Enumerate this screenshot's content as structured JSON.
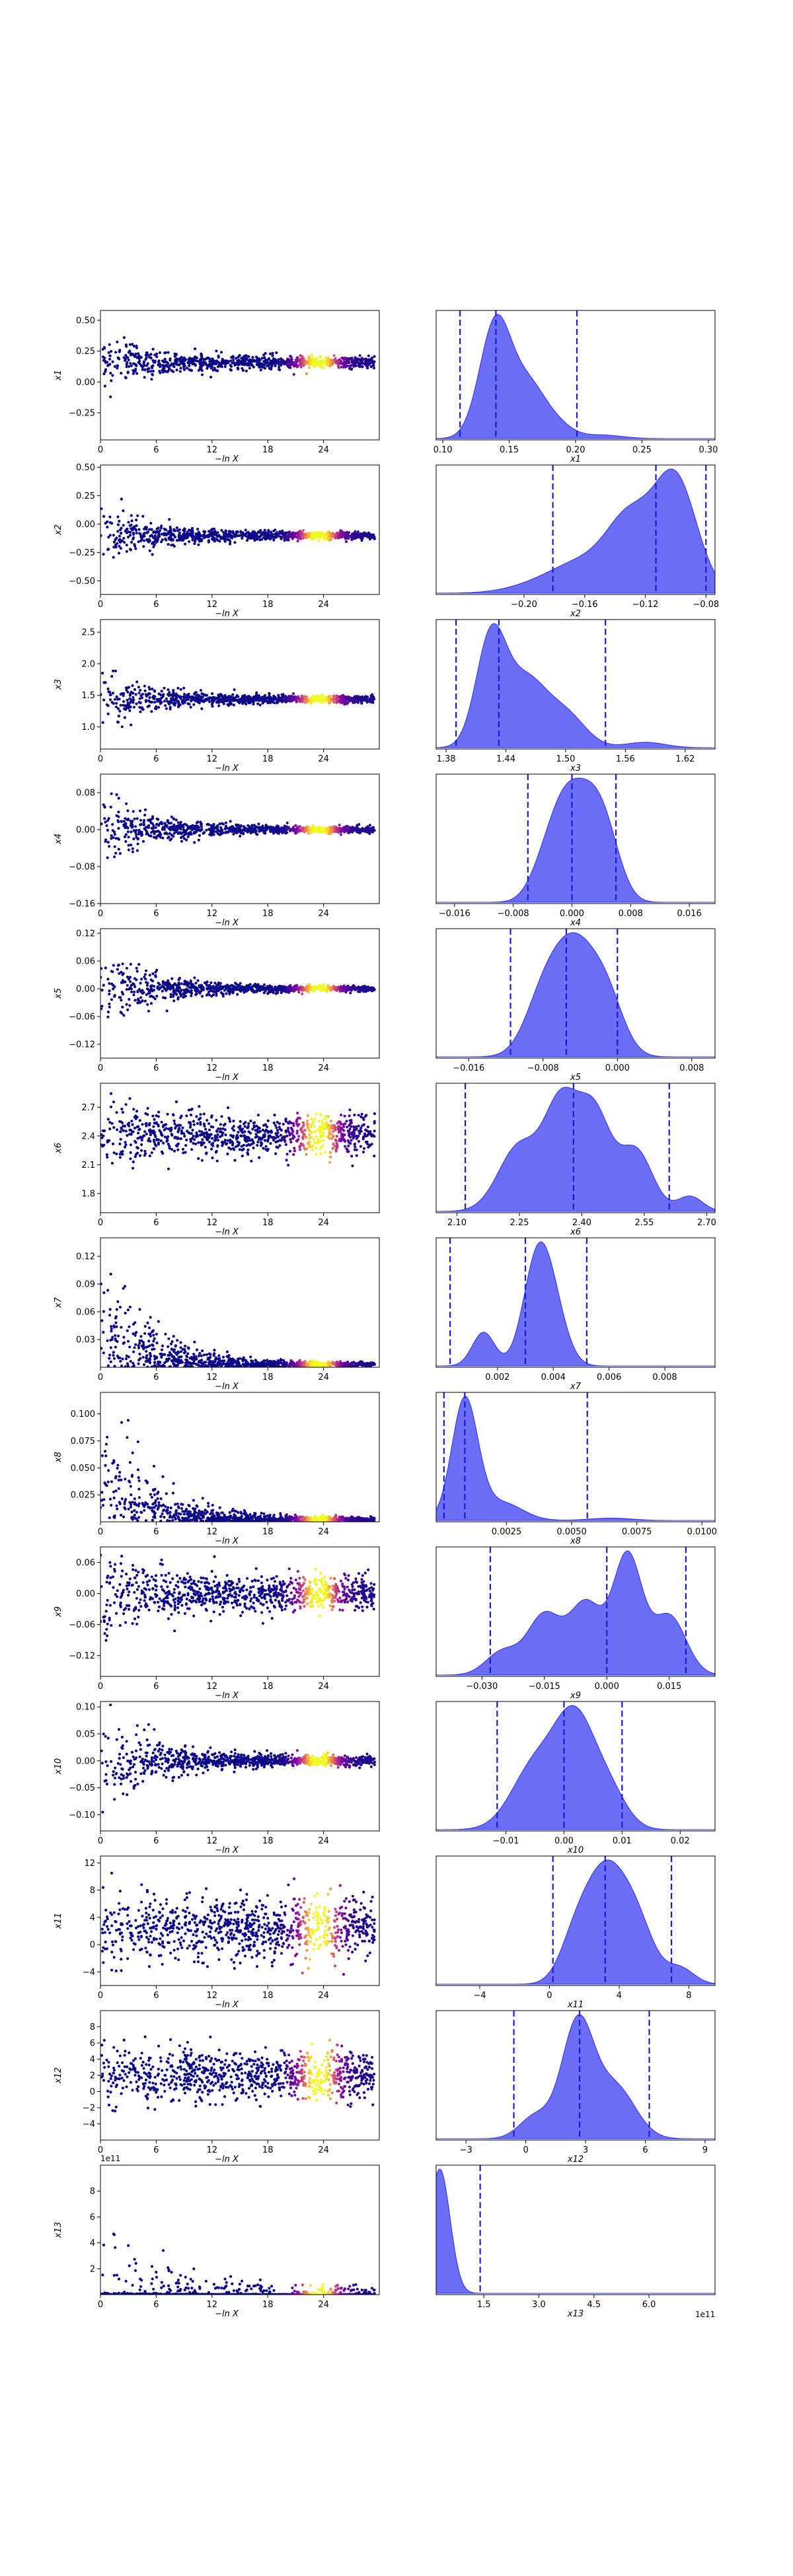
{
  "chart_data": [
    {
      "type": "scatter",
      "xlabel": "−ln X",
      "ylabel": "x1",
      "xlim": [
        0,
        30
      ],
      "ylim": [
        -0.47,
        0.58
      ],
      "xticks": [
        "0",
        "6",
        "12",
        "18",
        "24"
      ],
      "yticks": [
        "-0.25",
        "0.00",
        "0.25",
        "0.50"
      ],
      "center": 0.16,
      "spread0": 0.22,
      "spread_end": 0.04
    },
    {
      "type": "area",
      "xlabel": "x1",
      "xlim": [
        0.095,
        0.305
      ],
      "xticks": [
        "0.10",
        "0.15",
        "0.20",
        "0.25",
        "0.30"
      ],
      "quantiles": [
        0.113,
        0.14,
        0.201
      ],
      "peaks": [
        [
          0.14,
          1.0,
          0.012
        ],
        [
          0.165,
          0.4,
          0.012
        ],
        [
          0.185,
          0.12,
          0.012
        ],
        [
          0.22,
          0.03,
          0.015
        ]
      ]
    },
    {
      "type": "scatter",
      "xlabel": "−ln X",
      "ylabel": "x2",
      "xlim": [
        0,
        30
      ],
      "ylim": [
        -0.62,
        0.52
      ],
      "xticks": [
        "0",
        "6",
        "12",
        "18",
        "24"
      ],
      "yticks": [
        "-0.50",
        "-0.25",
        "0.00",
        "0.25",
        "0.50"
      ],
      "center": -0.1,
      "spread0": 0.25,
      "spread_end": 0.03
    },
    {
      "type": "area",
      "xlabel": "x2",
      "xlim": [
        -0.258,
        -0.074
      ],
      "xticks": [
        "-0.20",
        "-0.16",
        "-0.12",
        "-0.08"
      ],
      "quantiles": [
        -0.181,
        -0.113,
        -0.08
      ],
      "peaks": [
        [
          -0.1,
          1.0,
          0.014
        ],
        [
          -0.13,
          0.6,
          0.015
        ],
        [
          -0.16,
          0.25,
          0.02
        ],
        [
          -0.19,
          0.07,
          0.02
        ]
      ]
    },
    {
      "type": "scatter",
      "xlabel": "−ln X",
      "ylabel": "x3",
      "xlim": [
        0,
        30
      ],
      "ylim": [
        0.65,
        2.7
      ],
      "xticks": [
        "0",
        "6",
        "12",
        "18",
        "24"
      ],
      "yticks": [
        "1.0",
        "1.5",
        "2.0",
        "2.5"
      ],
      "center": 1.44,
      "spread0": 0.45,
      "spread_end": 0.05
    },
    {
      "type": "area",
      "xlabel": "x3",
      "xlim": [
        1.37,
        1.65
      ],
      "xticks": [
        "1.38",
        "1.44",
        "1.50",
        "1.56",
        "1.62"
      ],
      "quantiles": [
        1.39,
        1.433,
        1.54
      ],
      "peaks": [
        [
          1.425,
          1.0,
          0.015
        ],
        [
          1.46,
          0.6,
          0.02
        ],
        [
          1.5,
          0.3,
          0.02
        ],
        [
          1.58,
          0.05,
          0.02
        ]
      ]
    },
    {
      "type": "scatter",
      "xlabel": "−ln X",
      "ylabel": "x4",
      "xlim": [
        0,
        30
      ],
      "ylim": [
        -0.16,
        0.12
      ],
      "xticks": [
        "0",
        "6",
        "12",
        "18",
        "24"
      ],
      "yticks": [
        "-0.16",
        "-0.08",
        "0.00",
        "0.08"
      ],
      "center": 0.0,
      "spread0": 0.08,
      "spread_end": 0.006
    },
    {
      "type": "area",
      "xlabel": "x4",
      "xlim": [
        -0.0185,
        0.0195
      ],
      "xticks": [
        "-0.016",
        "-0.008",
        "0.000",
        "0.008",
        "0.016"
      ],
      "quantiles": [
        -0.006,
        0.0,
        0.006
      ],
      "peaks": [
        [
          -0.001,
          1.0,
          0.0022
        ],
        [
          0.0025,
          0.9,
          0.0022
        ],
        [
          0.005,
          0.5,
          0.002
        ],
        [
          -0.004,
          0.3,
          0.002
        ]
      ]
    },
    {
      "type": "scatter",
      "xlabel": "−ln X",
      "ylabel": "x5",
      "xlim": [
        0,
        30
      ],
      "ylim": [
        -0.15,
        0.13
      ],
      "xticks": [
        "0",
        "6",
        "12",
        "18",
        "24"
      ],
      "yticks": [
        "-0.12",
        "-0.06",
        "0.00",
        "0.06",
        "0.12"
      ],
      "center": 0.0,
      "spread0": 0.09,
      "spread_end": 0.005
    },
    {
      "type": "area",
      "xlabel": "x5",
      "xlim": [
        -0.0195,
        0.0105
      ],
      "xticks": [
        "-0.016",
        "-0.008",
        "0.000",
        "0.008"
      ],
      "quantiles": [
        -0.0115,
        -0.0055,
        0.0
      ],
      "peaks": [
        [
          -0.0045,
          1.0,
          0.0023
        ],
        [
          -0.008,
          0.5,
          0.002
        ],
        [
          -0.001,
          0.45,
          0.0018
        ]
      ]
    },
    {
      "type": "scatter",
      "xlabel": "−ln X",
      "ylabel": "x6",
      "xlim": [
        0,
        30
      ],
      "ylim": [
        1.6,
        2.95
      ],
      "xticks": [
        "0",
        "6",
        "12",
        "18",
        "24"
      ],
      "yticks": [
        "1.8",
        "2.1",
        "2.4",
        "2.7"
      ],
      "center": 2.41,
      "spread0": 0.35,
      "spread_end": 0.18
    },
    {
      "type": "area",
      "xlabel": "x6",
      "xlim": [
        2.05,
        2.72
      ],
      "xticks": [
        "2.10",
        "2.25",
        "2.40",
        "2.55",
        "2.70"
      ],
      "quantiles": [
        2.12,
        2.38,
        2.61
      ],
      "peaks": [
        [
          2.35,
          1.0,
          0.04
        ],
        [
          2.43,
          0.95,
          0.04
        ],
        [
          2.25,
          0.65,
          0.05
        ],
        [
          2.53,
          0.6,
          0.04
        ],
        [
          2.66,
          0.15,
          0.03
        ]
      ]
    },
    {
      "type": "scatter",
      "xlabel": "−ln X",
      "ylabel": "x7",
      "xlim": [
        0,
        30
      ],
      "ylim": [
        0.0,
        0.14
      ],
      "xticks": [
        "0",
        "6",
        "12",
        "18",
        "24"
      ],
      "yticks": [
        "0.03",
        "0.06",
        "0.09",
        "0.12"
      ],
      "center": 0.003,
      "spread0": 0.11,
      "spread_end": 0.002,
      "floor": 0.0
    },
    {
      "type": "area",
      "xlabel": "x7",
      "xlim": [
        -0.0002,
        0.0098
      ],
      "xticks": [
        "0.002",
        "0.004",
        "0.006",
        "0.008"
      ],
      "quantiles": [
        0.0003,
        0.003,
        0.0052
      ],
      "peaks": [
        [
          0.0034,
          1.0,
          0.0005
        ],
        [
          0.0015,
          0.35,
          0.0004
        ],
        [
          0.004,
          0.5,
          0.0005
        ]
      ]
    },
    {
      "type": "scatter",
      "xlabel": "−ln X",
      "ylabel": "x8",
      "xlim": [
        0,
        30
      ],
      "ylim": [
        0.0,
        0.12
      ],
      "xticks": [
        "0",
        "6",
        "12",
        "18",
        "24"
      ],
      "yticks": [
        "0.025",
        "0.050",
        "0.075",
        "0.100"
      ],
      "center": 0.002,
      "spread0": 0.1,
      "spread_end": 0.002,
      "floor": 0.0
    },
    {
      "type": "area",
      "xlabel": "x8",
      "xlim": [
        -0.0002,
        0.0105
      ],
      "xticks": [
        "0.0025",
        "0.0050",
        "0.0075",
        "0.0100"
      ],
      "quantiles": [
        0.0001,
        0.0009,
        0.0056
      ],
      "peaks": [
        [
          0.0009,
          1.0,
          0.0005
        ],
        [
          0.0023,
          0.15,
          0.0008
        ],
        [
          0.0065,
          0.02,
          0.0008
        ]
      ]
    },
    {
      "type": "scatter",
      "xlabel": "−ln X",
      "ylabel": "x9",
      "xlim": [
        0,
        30
      ],
      "ylim": [
        -0.16,
        0.09
      ],
      "xticks": [
        "0",
        "6",
        "12",
        "18",
        "24"
      ],
      "yticks": [
        "-0.12",
        "-0.06",
        "0.00",
        "0.06"
      ],
      "center": 0.0,
      "spread0": 0.08,
      "spread_end": 0.03
    },
    {
      "type": "area",
      "xlabel": "x9",
      "xlim": [
        -0.041,
        0.026
      ],
      "xticks": [
        "-0.030",
        "-0.015",
        "0.000",
        "0.015"
      ],
      "quantiles": [
        -0.028,
        0.0,
        0.019
      ],
      "peaks": [
        [
          0.005,
          1.0,
          0.0035
        ],
        [
          -0.005,
          0.6,
          0.004
        ],
        [
          -0.015,
          0.5,
          0.004
        ],
        [
          0.015,
          0.5,
          0.004
        ],
        [
          -0.025,
          0.2,
          0.004
        ]
      ]
    },
    {
      "type": "scatter",
      "xlabel": "−ln X",
      "ylabel": "x10",
      "xlim": [
        0,
        30
      ],
      "ylim": [
        -0.13,
        0.11
      ],
      "xticks": [
        "0",
        "6",
        "12",
        "18",
        "24"
      ],
      "yticks": [
        "-0.10",
        "-0.05",
        "0.00",
        "0.05",
        "0.10"
      ],
      "center": 0.0,
      "spread0": 0.09,
      "spread_end": 0.008
    },
    {
      "type": "area",
      "xlabel": "x10",
      "xlim": [
        -0.022,
        0.026
      ],
      "xticks": [
        "-0.01",
        "0.00",
        "0.01",
        "0.02"
      ],
      "quantiles": [
        -0.0115,
        0.0,
        0.01
      ],
      "peaks": [
        [
          0.002,
          1.0,
          0.0035
        ],
        [
          -0.005,
          0.6,
          0.004
        ],
        [
          0.008,
          0.3,
          0.003
        ]
      ]
    },
    {
      "type": "scatter",
      "xlabel": "−ln X",
      "ylabel": "x11",
      "xlim": [
        0,
        30
      ],
      "ylim": [
        -6,
        13
      ],
      "xticks": [
        "0",
        "6",
        "12",
        "18",
        "24"
      ],
      "yticks": [
        "-4",
        "0",
        "4",
        "8",
        "12"
      ],
      "center": 2.5,
      "spread0": 5.5,
      "spread_end": 4.0
    },
    {
      "type": "area",
      "xlabel": "x11",
      "xlim": [
        -6.5,
        9.5
      ],
      "xticks": [
        "-4",
        "0",
        "4",
        "8"
      ],
      "quantiles": [
        0.2,
        3.2,
        7.0
      ],
      "peaks": [
        [
          3.2,
          1.0,
          1.1
        ],
        [
          5.0,
          0.55,
          1.0
        ],
        [
          1.5,
          0.4,
          0.9
        ],
        [
          7.5,
          0.15,
          0.8
        ]
      ]
    },
    {
      "type": "scatter",
      "xlabel": "−ln X",
      "ylabel": "x12",
      "xlim": [
        0,
        30
      ],
      "ylim": [
        -6,
        10
      ],
      "xticks": [
        "0",
        "6",
        "12",
        "18",
        "24"
      ],
      "yticks": [
        "-4",
        "-2",
        "0",
        "2",
        "4",
        "6",
        "8"
      ],
      "center": 2.0,
      "spread0": 3.5,
      "spread_end": 2.8
    },
    {
      "type": "area",
      "xlabel": "x12",
      "xlim": [
        -4.5,
        9.5
      ],
      "xticks": [
        "-3",
        "0",
        "3",
        "6",
        "9"
      ],
      "quantiles": [
        -0.6,
        2.7,
        6.2
      ],
      "peaks": [
        [
          2.6,
          1.0,
          0.8
        ],
        [
          4.5,
          0.45,
          1.0
        ],
        [
          0.5,
          0.2,
          0.8
        ]
      ]
    },
    {
      "type": "scatter",
      "xlabel": "−ln X",
      "ylabel": "x13",
      "xlim": [
        0,
        30
      ],
      "ylim": [
        0,
        10
      ],
      "xticks": [
        "0",
        "6",
        "12",
        "18",
        "24"
      ],
      "yticks": [
        "2",
        "4",
        "6",
        "8"
      ],
      "center": 0.15,
      "spread0": 9.0,
      "spread_end": 0.5,
      "floor": 0.0,
      "offset_label": "1e11"
    },
    {
      "type": "area",
      "xlabel": "x13",
      "xlim": [
        0.2,
        7.8
      ],
      "xticks": [
        "1.5",
        "3.0",
        "4.5",
        "6.0"
      ],
      "quantiles": [
        1.4
      ],
      "peaks": [
        [
          0.3,
          1.0,
          0.28
        ]
      ],
      "offset_label": "1e11"
    }
  ],
  "colors": {
    "fill": "#6466f6",
    "edge": "#2a2cf0",
    "quantile": "#1a1adc",
    "scatter_low": "#0d0887",
    "scatter_high": "#f0f921"
  }
}
